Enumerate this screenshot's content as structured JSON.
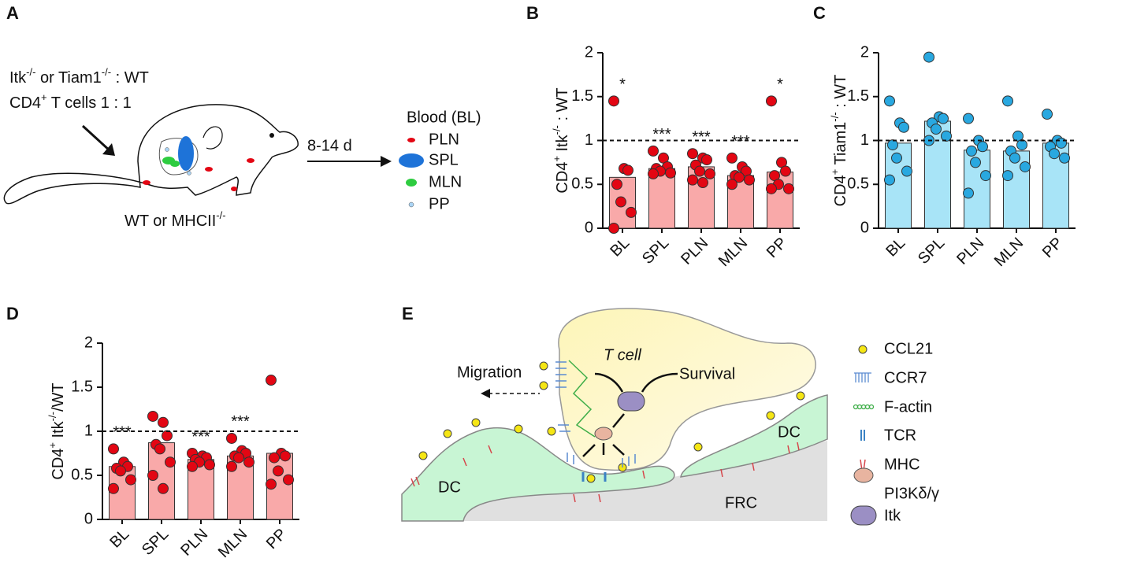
{
  "panel_letters": [
    "A",
    "B",
    "C",
    "D",
    "E"
  ],
  "panel_a": {
    "line1": [
      "Itk",
      "-/-",
      " or Tiam1",
      "-/-",
      " : WT"
    ],
    "line2": [
      "CD4",
      "+",
      " T cells 1 : 1"
    ],
    "host": [
      "WT or MHCII",
      "-/-"
    ],
    "time": "8-14 d",
    "legend": [
      "Blood (BL)",
      "PLN",
      "SPL",
      "MLN",
      "PP"
    ]
  },
  "chart_data": [
    {
      "type": "bar",
      "y_label": [
        "CD4",
        "+",
        " Itk",
        "-/-",
        " : WT"
      ],
      "categories": [
        "BL",
        "SPL",
        "PLN",
        "MLN",
        "PP"
      ],
      "values": [
        0.58,
        0.68,
        0.7,
        0.6,
        0.64
      ],
      "points": [
        [
          1.45,
          0.68,
          0.66,
          0.5,
          0.3,
          0.18,
          0
        ],
        [
          0.88,
          0.8,
          0.7,
          0.68,
          0.65,
          0.63,
          0.62
        ],
        [
          0.85,
          0.8,
          0.78,
          0.72,
          0.65,
          0.62,
          0.55,
          0.52
        ],
        [
          0.8,
          0.7,
          0.65,
          0.6,
          0.58,
          0.55,
          0.5
        ],
        [
          1.45,
          0.75,
          0.65,
          0.6,
          0.5,
          0.45,
          0.45
        ]
      ],
      "significance": [
        "*",
        "***",
        "***",
        "***",
        "*"
      ],
      "reference_line": 1,
      "color": "#f9a9a9",
      "point_color": "#e30613",
      "ylim": [
        0,
        2
      ],
      "yticks": [
        0,
        0.5,
        1,
        1.5,
        2
      ]
    },
    {
      "type": "bar",
      "y_label": [
        "CD4",
        "+",
        " Tiam1",
        "-/-",
        " : WT"
      ],
      "categories": [
        "BL",
        "SPL",
        "PLN",
        "MLN",
        "PP"
      ],
      "values": [
        0.97,
        1.22,
        0.89,
        0.88,
        0.97
      ],
      "points": [
        [
          1.45,
          1.2,
          1.15,
          0.95,
          0.8,
          0.65,
          0.55
        ],
        [
          1.95,
          1.27,
          1.25,
          1.2,
          1.13,
          1.05,
          1.0
        ],
        [
          1.25,
          1.0,
          0.93,
          0.88,
          0.75,
          0.6,
          0.4
        ],
        [
          1.45,
          1.05,
          0.95,
          0.88,
          0.8,
          0.7,
          0.6
        ],
        [
          1.3,
          1.0,
          0.97,
          0.93,
          0.85,
          0.8
        ]
      ],
      "significance": [
        null,
        null,
        null,
        null,
        null
      ],
      "reference_line": 1,
      "color": "#a8e4f7",
      "point_color": "#29a8e0",
      "ylim": [
        0,
        2
      ],
      "yticks": [
        0,
        0.5,
        1,
        1.5,
        2
      ]
    },
    {
      "type": "bar",
      "y_label": [
        "CD4",
        "+",
        " Itk",
        "-/-",
        "/WT"
      ],
      "categories": [
        "BL",
        "SPL",
        "PLN",
        "MLN",
        "PP"
      ],
      "values": [
        0.6,
        0.87,
        0.68,
        0.72,
        0.75
      ],
      "points": [
        [
          0.8,
          0.65,
          0.6,
          0.58,
          0.55,
          0.45,
          0.35
        ],
        [
          1.17,
          1.1,
          0.95,
          0.85,
          0.8,
          0.65,
          0.5,
          0.35
        ],
        [
          0.75,
          0.72,
          0.7,
          0.68,
          0.65,
          0.62,
          0.6
        ],
        [
          0.92,
          0.78,
          0.75,
          0.72,
          0.7,
          0.65,
          0.6
        ],
        [
          1.58,
          0.75,
          0.72,
          0.7,
          0.55,
          0.45,
          0.4
        ]
      ],
      "significance": [
        "***",
        null,
        "***",
        "***",
        null
      ],
      "reference_line": 1,
      "color": "#f9a9a9",
      "point_color": "#e30613",
      "ylim": [
        0,
        2
      ],
      "yticks": [
        0,
        0.5,
        1,
        1.5,
        2
      ]
    }
  ],
  "panel_e": {
    "t_cell": "T cell",
    "migration": "Migration",
    "survival": "Survival",
    "dc_left": "DC",
    "dc_right": "DC",
    "frc": "FRC",
    "legend": [
      "CCL21",
      "CCR7",
      "F-actin",
      "TCR",
      "MHC",
      "PI3Kδ/γ",
      "Itk"
    ]
  }
}
